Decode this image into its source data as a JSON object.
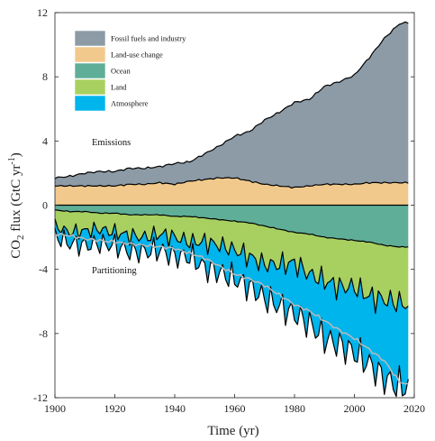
{
  "chart_data": {
    "type": "area",
    "xlabel": "Time (yr)",
    "ylabel_main": "CO",
    "ylabel_sub": "2",
    "ylabel_rest": " flux (GtC yr",
    "ylabel_sup": "-1",
    "ylabel_end": ")",
    "xlim": [
      1900,
      2020
    ],
    "ylim": [
      -12,
      12
    ],
    "x_ticks": [
      1900,
      1920,
      1940,
      1960,
      1980,
      2000,
      2020
    ],
    "y_ticks": [
      -12,
      -8,
      -4,
      0,
      4,
      8,
      12
    ],
    "y_tick_labels": [
      "-12",
      "-8",
      "-4",
      "0",
      "4",
      "8",
      "12"
    ],
    "grid": false,
    "legend_position": "top-left",
    "annotations": {
      "emissions": "Emissions",
      "partitioning": "Partitioning"
    },
    "x": [
      1900,
      1905,
      1910,
      1915,
      1920,
      1925,
      1930,
      1935,
      1940,
      1945,
      1950,
      1955,
      1960,
      1965,
      1970,
      1975,
      1980,
      1985,
      1990,
      1995,
      2000,
      2005,
      2010,
      2015,
      2018
    ],
    "series": [
      {
        "name": "Fossil fuels and industry",
        "color": "#8c9ba6",
        "values": [
          0.5,
          0.6,
          0.8,
          0.9,
          0.9,
          1.0,
          1.0,
          1.0,
          1.3,
          1.2,
          1.6,
          2.0,
          2.6,
          3.1,
          4.0,
          4.6,
          5.3,
          5.4,
          6.1,
          6.4,
          6.8,
          7.8,
          9.0,
          9.9,
          10.0
        ]
      },
      {
        "name": "Land-use change",
        "color": "#f2c98c",
        "values": [
          1.2,
          1.2,
          1.2,
          1.2,
          1.2,
          1.3,
          1.3,
          1.4,
          1.3,
          1.5,
          1.6,
          1.7,
          1.7,
          1.5,
          1.3,
          1.2,
          1.1,
          1.2,
          1.3,
          1.3,
          1.3,
          1.4,
          1.4,
          1.4,
          1.4
        ]
      },
      {
        "name": "Ocean",
        "color": "#5fae98",
        "values": [
          -0.3,
          -0.4,
          -0.4,
          -0.5,
          -0.5,
          -0.6,
          -0.6,
          -0.6,
          -0.7,
          -0.7,
          -0.8,
          -0.9,
          -1.0,
          -1.1,
          -1.3,
          -1.5,
          -1.7,
          -1.8,
          -2.0,
          -2.1,
          -2.2,
          -2.3,
          -2.5,
          -2.6,
          -2.6
        ]
      },
      {
        "name": "Land",
        "color": "#a8d060",
        "values": [
          -1.0,
          -1.3,
          -1.2,
          -1.0,
          -1.2,
          -1.3,
          -1.4,
          -1.2,
          -1.3,
          -1.6,
          -1.5,
          -1.6,
          -1.8,
          -2.1,
          -2.4,
          -2.2,
          -1.9,
          -2.5,
          -2.7,
          -3.0,
          -2.9,
          -3.4,
          -3.4,
          -3.5,
          -3.6
        ]
      },
      {
        "name": "Atmosphere",
        "color": "#00b4ec",
        "values": [
          -0.6,
          -0.7,
          -0.9,
          -0.9,
          -0.8,
          -1.0,
          -0.9,
          -1.0,
          -1.2,
          -0.9,
          -1.6,
          -1.7,
          -1.8,
          -1.9,
          -2.1,
          -2.6,
          -3.2,
          -3.1,
          -3.6,
          -3.6,
          -4.1,
          -4.2,
          -4.9,
          -5.2,
          -5.1
        ]
      }
    ],
    "imbalance_line": {
      "color": "#bbbbbb",
      "values": [
        -1.8,
        -1.9,
        -2.1,
        -2.2,
        -2.3,
        -2.4,
        -2.5,
        -2.6,
        -2.7,
        -3.0,
        -3.3,
        -3.8,
        -4.3,
        -4.6,
        -5.0,
        -5.6,
        -6.2,
        -6.6,
        -7.2,
        -7.8,
        -8.3,
        -9.0,
        -9.7,
        -11.0,
        -11.2
      ]
    }
  }
}
